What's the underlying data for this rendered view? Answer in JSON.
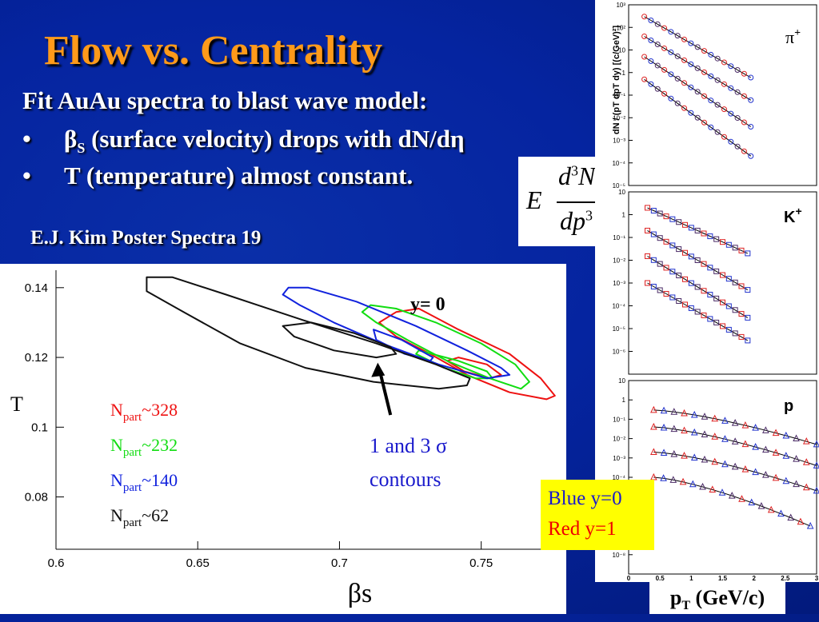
{
  "slide": {
    "title": "Flow vs. Centrality",
    "intro": "Fit AuAu spectra to blast wave model:",
    "bullets": [
      {
        "symbol": "•",
        "lead": "β",
        "sub": "S",
        "text": " (surface velocity) drops with dN/dη"
      },
      {
        "symbol": "•",
        "text": "T (temperature) almost constant."
      }
    ],
    "credit": "E.J. Kim Poster Spectra 19",
    "formula": {
      "E": "E",
      "num": "d",
      "num_exp": "3",
      "num_sym": "N",
      "den": "dp",
      "den_exp": "3"
    },
    "legend": {
      "line1": "Blue y=0",
      "line2": "Red  y=1"
    },
    "pt_label": {
      "main": "p",
      "sub": "T",
      "rest": " (GeV/c)"
    },
    "colors": {
      "background": "#0524a0",
      "title": "#ff9a1a",
      "legend_bg": "#ffff00",
      "blue_text": "#1a1acc",
      "red_text": "#ee0000"
    }
  },
  "chart_data": [
    {
      "type": "contour",
      "xlabel": "βs",
      "ylabel": "T",
      "xlim": [
        0.6,
        0.78
      ],
      "ylim": [
        0.065,
        0.145
      ],
      "xticks": [
        0.6,
        0.65,
        0.7,
        0.75
      ],
      "yticks": [
        0.08,
        0.1,
        0.12,
        0.14
      ],
      "xtick_labels": [
        "0.6",
        "0.65",
        "0.7",
        "0.75"
      ],
      "ytick_labels": [
        "0.08",
        "0.1",
        "0.12",
        "0.14"
      ],
      "annotation_top": "y= 0",
      "annotation_arrow": {
        "line1": "1 and 3 σ",
        "line2": "contours",
        "tail": [
          0.718,
          0.1035
        ],
        "head": [
          0.7135,
          0.1185
        ]
      },
      "series": [
        {
          "name": "Npart~328",
          "label_main": "N",
          "label_sub": "part",
          "label_rest": "~328",
          "color": "#ee1111",
          "contours": [
            [
              [
                0.728,
                0.134
              ],
              [
                0.742,
                0.128
              ],
              [
                0.76,
                0.121
              ],
              [
                0.771,
                0.114
              ],
              [
                0.776,
                0.109
              ],
              [
                0.773,
                0.108
              ],
              [
                0.76,
                0.11
              ],
              [
                0.745,
                0.115
              ],
              [
                0.732,
                0.121
              ],
              [
                0.72,
                0.126
              ],
              [
                0.714,
                0.13
              ],
              [
                0.72,
                0.133
              ],
              [
                0.728,
                0.134
              ]
            ],
            [
              [
                0.742,
                0.12
              ],
              [
                0.752,
                0.118
              ],
              [
                0.757,
                0.115
              ],
              [
                0.753,
                0.114
              ],
              [
                0.744,
                0.116
              ],
              [
                0.738,
                0.119
              ],
              [
                0.742,
                0.12
              ]
            ]
          ]
        },
        {
          "name": "Npart~232",
          "label_main": "N",
          "label_sub": "part",
          "label_rest": "~232",
          "color": "#11dd11",
          "contours": [
            [
              [
                0.711,
                0.135
              ],
              [
                0.72,
                0.134
              ],
              [
                0.734,
                0.13
              ],
              [
                0.75,
                0.124
              ],
              [
                0.762,
                0.118
              ],
              [
                0.767,
                0.113
              ],
              [
                0.764,
                0.111
              ],
              [
                0.753,
                0.114
              ],
              [
                0.738,
                0.119
              ],
              [
                0.724,
                0.125
              ],
              [
                0.713,
                0.13
              ],
              [
                0.708,
                0.133
              ],
              [
                0.711,
                0.135
              ]
            ],
            [
              [
                0.728,
                0.122
              ],
              [
                0.742,
                0.119
              ],
              [
                0.752,
                0.116
              ],
              [
                0.754,
                0.114
              ],
              [
                0.748,
                0.114
              ],
              [
                0.737,
                0.117
              ],
              [
                0.727,
                0.121
              ],
              [
                0.728,
                0.122
              ]
            ]
          ]
        },
        {
          "name": "Npart~140",
          "label_main": "N",
          "label_sub": "part",
          "label_rest": "~140",
          "color": "#1122dd",
          "contours": [
            [
              [
                0.682,
                0.14
              ],
              [
                0.689,
                0.14
              ],
              [
                0.706,
                0.136
              ],
              [
                0.727,
                0.129
              ],
              [
                0.745,
                0.122
              ],
              [
                0.757,
                0.117
              ],
              [
                0.76,
                0.115
              ],
              [
                0.752,
                0.114
              ],
              [
                0.735,
                0.118
              ],
              [
                0.715,
                0.124
              ],
              [
                0.698,
                0.13
              ],
              [
                0.686,
                0.135
              ],
              [
                0.68,
                0.138
              ],
              [
                0.682,
                0.14
              ]
            ],
            [
              [
                0.712,
                0.128
              ],
              [
                0.722,
                0.125
              ],
              [
                0.733,
                0.12
              ],
              [
                0.732,
                0.119
              ],
              [
                0.723,
                0.121
              ],
              [
                0.713,
                0.125
              ],
              [
                0.712,
                0.128
              ]
            ]
          ]
        },
        {
          "name": "Npart~62",
          "label_main": "N",
          "label_sub": "part",
          "label_rest": "~62",
          "color": "#111111",
          "contours": [
            [
              [
                0.632,
                0.143
              ],
              [
                0.641,
                0.143
              ],
              [
                0.66,
                0.138
              ],
              [
                0.686,
                0.131
              ],
              [
                0.713,
                0.124
              ],
              [
                0.734,
                0.118
              ],
              [
                0.746,
                0.114
              ],
              [
                0.745,
                0.112
              ],
              [
                0.735,
                0.111
              ],
              [
                0.712,
                0.113
              ],
              [
                0.688,
                0.117
              ],
              [
                0.665,
                0.124
              ],
              [
                0.645,
                0.133
              ],
              [
                0.632,
                0.139
              ],
              [
                0.632,
                0.143
              ]
            ],
            [
              [
                0.68,
                0.129
              ],
              [
                0.69,
                0.13
              ],
              [
                0.705,
                0.127
              ],
              [
                0.718,
                0.123
              ],
              [
                0.72,
                0.121
              ],
              [
                0.713,
                0.12
              ],
              [
                0.698,
                0.122
              ],
              [
                0.684,
                0.126
              ],
              [
                0.68,
                0.129
              ]
            ]
          ]
        }
      ]
    },
    {
      "type": "scatter",
      "title": "",
      "xlabel": "pT (GeV/c)",
      "ylabel": "dN / (pT dpT dy) [(c/GeV)²]",
      "scale": "log-y",
      "xlim": [
        0,
        3
      ],
      "xtick_labels": [
        "0",
        "0.5",
        "1",
        "1.5",
        "2",
        "2.5",
        "3"
      ],
      "panels": [
        {
          "particle": "π⁺",
          "label_main": "π",
          "label_sup": "+",
          "ylim": [
            1e-05,
            1000
          ],
          "ytick_labels": [
            "10³",
            "10²",
            "10",
            "1",
            "10⁻¹",
            "10⁻²",
            "10⁻³",
            "10⁻⁴",
            "10⁻⁵"
          ],
          "curves": [
            {
              "x_range": [
                0.25,
                1.95
              ],
              "y_start": 300,
              "y_end": 0.6
            },
            {
              "x_range": [
                0.25,
                1.95
              ],
              "y_start": 40,
              "y_end": 0.06
            },
            {
              "x_range": [
                0.25,
                1.95
              ],
              "y_start": 5,
              "y_end": 0.004
            },
            {
              "x_range": [
                0.25,
                1.95
              ],
              "y_start": 0.5,
              "y_end": 0.0002
            }
          ]
        },
        {
          "particle": "K⁺",
          "label_main": "K",
          "label_sup": "+",
          "ylim": [
            1e-06,
            100
          ],
          "ytick_labels": [
            "10",
            "1",
            "10⁻¹",
            "10⁻²",
            "10⁻³",
            "10⁻⁴",
            "10⁻⁵",
            "10⁻⁶"
          ],
          "curves": [
            {
              "x_range": [
                0.3,
                1.9
              ],
              "y_start": 20,
              "y_end": 0.2
            },
            {
              "x_range": [
                0.3,
                1.9
              ],
              "y_start": 2,
              "y_end": 0.005
            },
            {
              "x_range": [
                0.3,
                1.9
              ],
              "y_start": 0.15,
              "y_end": 0.0003
            },
            {
              "x_range": [
                0.3,
                1.9
              ],
              "y_start": 0.01,
              "y_end": 3e-05
            }
          ]
        },
        {
          "particle": "p",
          "label_main": "p",
          "label_sup": "",
          "ylim": [
            1e-08,
            100
          ],
          "ytick_labels": [
            "10",
            "1",
            "10⁻¹",
            "10⁻²",
            "10⁻³",
            "10⁻⁴",
            "10⁻⁵",
            "10⁻⁶",
            "10⁻⁷",
            "10⁻⁸"
          ],
          "curves": [
            {
              "x_range": [
                0.4,
                3.0
              ],
              "y_start": 3,
              "y_end": 0.05
            },
            {
              "x_range": [
                0.4,
                3.0
              ],
              "y_start": 0.4,
              "y_end": 0.004
            },
            {
              "x_range": [
                0.4,
                3.0
              ],
              "y_start": 0.02,
              "y_end": 0.0002
            },
            {
              "x_range": [
                0.4,
                2.9
              ],
              "y_start": 0.001,
              "y_end": 3e-06
            }
          ]
        }
      ]
    }
  ]
}
